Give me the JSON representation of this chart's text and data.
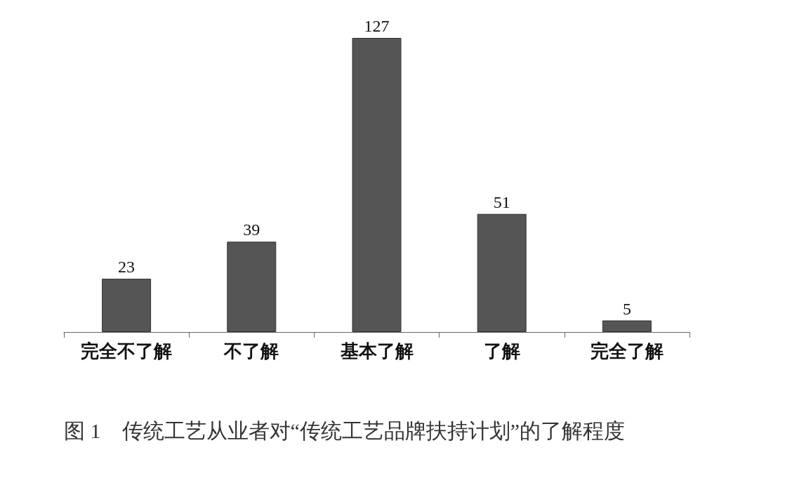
{
  "chart_data": {
    "type": "bar",
    "title": "图 1　传统工艺从业者对“传统工艺品牌扶持计划”的了解程度",
    "categories": [
      "完全不了解",
      "不了解",
      "基本了解",
      "了解",
      "完全了解"
    ],
    "values": [
      23,
      39,
      127,
      51,
      5
    ],
    "color": "#555555",
    "data_labels": true
  }
}
